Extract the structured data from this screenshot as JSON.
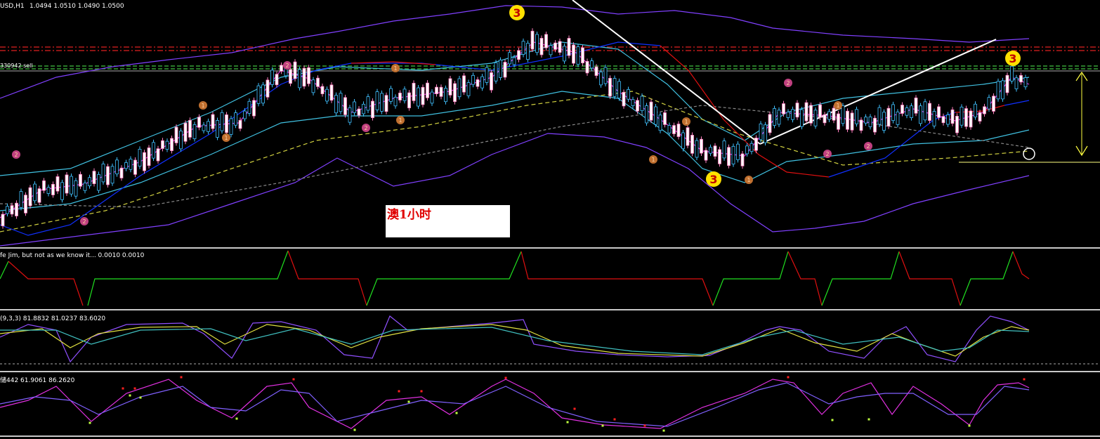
{
  "header": {
    "symbol": "USD,H1",
    "quote": "1.0494 1.0510 1.0490 1.0500"
  },
  "order_label": "330942 sell",
  "note": "澳1小时",
  "panels": [
    {
      "label": "fe Jim, but not as we know it... 0.0010 0.0010"
    },
    {
      "label": "(9,3,3) 81.8832 81.0237 83.6020"
    },
    {
      "label": "储442 61.9061 86.2620"
    }
  ],
  "badges": [
    "3",
    "3",
    "3",
    "1",
    "1",
    "1",
    "1",
    "1",
    "1",
    "1",
    "1",
    "2",
    "2",
    "2",
    "2",
    "2",
    "2",
    "2"
  ]
}
